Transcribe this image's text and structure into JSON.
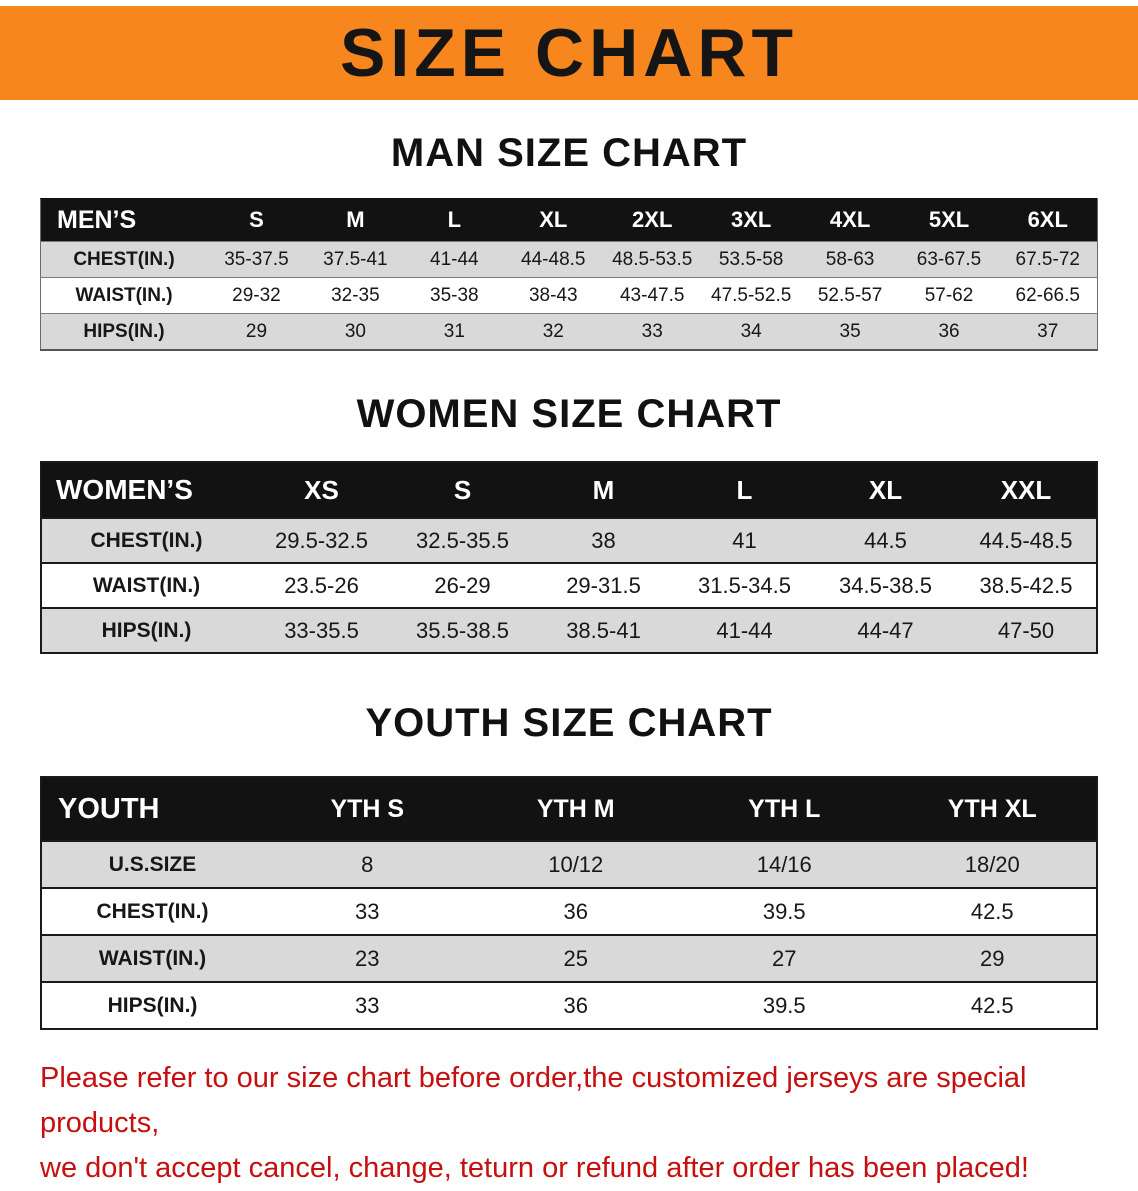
{
  "banner": {
    "title": "SIZE CHART",
    "bg_color": "#F6861D",
    "text_color": "#151515"
  },
  "chart_data": [
    {
      "type": "table",
      "title": "MAN SIZE CHART",
      "header_label": "MEN’S",
      "columns": [
        "S",
        "M",
        "L",
        "XL",
        "2XL",
        "3XL",
        "4XL",
        "5XL",
        "6XL"
      ],
      "rows": [
        {
          "label": "CHEST(IN.)",
          "values": [
            "35-37.5",
            "37.5-41",
            "41-44",
            "44-48.5",
            "48.5-53.5",
            "53.5-58",
            "58-63",
            "63-67.5",
            "67.5-72"
          ]
        },
        {
          "label": "WAIST(IN.)",
          "values": [
            "29-32",
            "32-35",
            "35-38",
            "38-43",
            "43-47.5",
            "47.5-52.5",
            "52.5-57",
            "57-62",
            "62-66.5"
          ]
        },
        {
          "label": "HIPS(IN.)",
          "values": [
            "29",
            "30",
            "31",
            "32",
            "33",
            "34",
            "35",
            "36",
            "37"
          ]
        }
      ]
    },
    {
      "type": "table",
      "title": "WOMEN SIZE CHART",
      "header_label": "WOMEN’S",
      "columns": [
        "XS",
        "S",
        "M",
        "L",
        "XL",
        "XXL"
      ],
      "rows": [
        {
          "label": "CHEST(IN.)",
          "values": [
            "29.5-32.5",
            "32.5-35.5",
            "38",
            "41",
            "44.5",
            "44.5-48.5"
          ]
        },
        {
          "label": "WAIST(IN.)",
          "values": [
            "23.5-26",
            "26-29",
            "29-31.5",
            "31.5-34.5",
            "34.5-38.5",
            "38.5-42.5"
          ]
        },
        {
          "label": "HIPS(IN.)",
          "values": [
            "33-35.5",
            "35.5-38.5",
            "38.5-41",
            "41-44",
            "44-47",
            "47-50"
          ]
        }
      ]
    },
    {
      "type": "table",
      "title": "YOUTH SIZE CHART",
      "header_label": "YOUTH",
      "columns": [
        "YTH S",
        "YTH M",
        "YTH L",
        "YTH XL"
      ],
      "rows": [
        {
          "label": "U.S.SIZE",
          "values": [
            "8",
            "10/12",
            "14/16",
            "18/20"
          ]
        },
        {
          "label": "CHEST(IN.)",
          "values": [
            "33",
            "36",
            "39.5",
            "42.5"
          ]
        },
        {
          "label": "WAIST(IN.)",
          "values": [
            "23",
            "25",
            "27",
            "29"
          ]
        },
        {
          "label": "HIPS(IN.)",
          "values": [
            "33",
            "36",
            "39.5",
            "42.5"
          ]
        }
      ]
    }
  ],
  "footer": {
    "color": "#C60F0F",
    "lines": [
      "Please refer to our size chart before order,the customized jerseys are special products,",
      "we don't accept cancel, change, teturn or refund after order has been placed!"
    ]
  }
}
